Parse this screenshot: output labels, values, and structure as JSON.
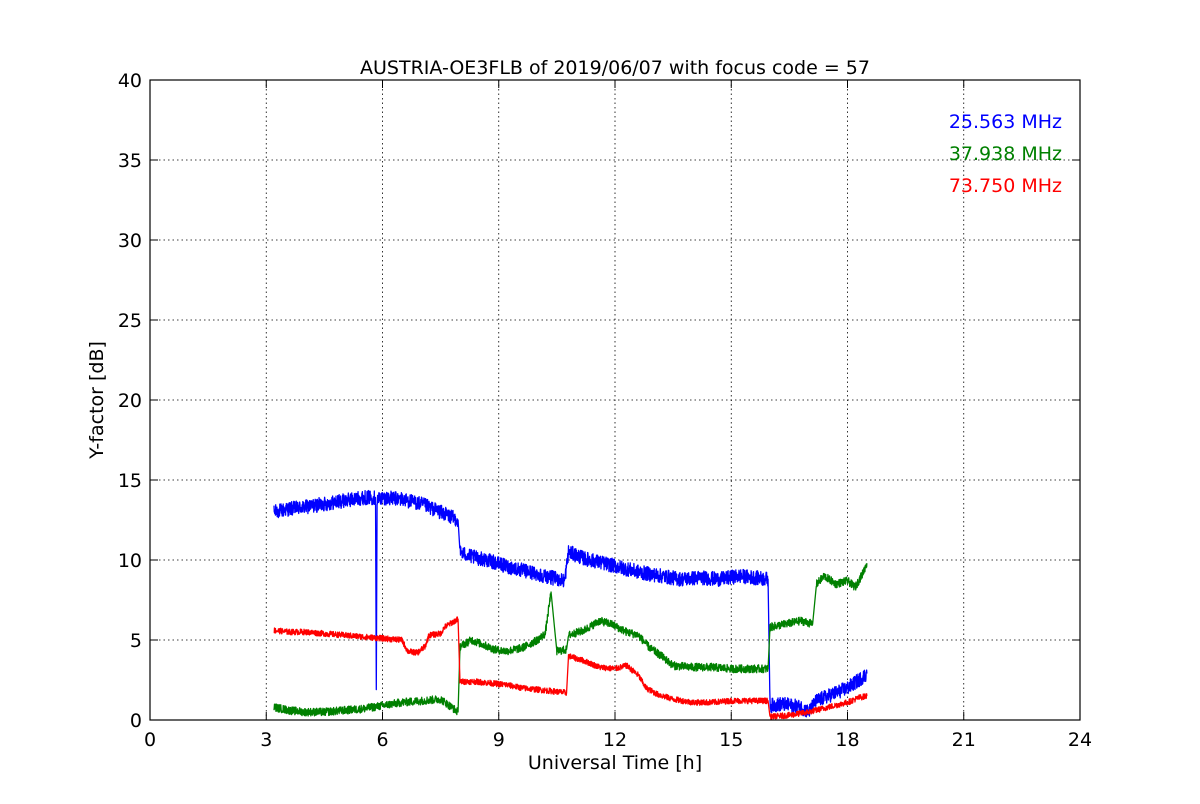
{
  "chart_data": {
    "type": "line",
    "title": "AUSTRIA-OE3FLB of 2019/06/07 with focus code = 57",
    "xlabel": "Universal Time [h]",
    "ylabel": "Y-factor [dB]",
    "xlim": [
      0,
      24
    ],
    "ylim": [
      0,
      40
    ],
    "xticks": [
      "0",
      "3",
      "6",
      "9",
      "12",
      "15",
      "18",
      "21",
      "24"
    ],
    "yticks": [
      "0",
      "5",
      "10",
      "15",
      "20",
      "25",
      "30",
      "35",
      "40"
    ],
    "grid": true,
    "legend_position": "top-right",
    "series": [
      {
        "name": "25.563 MHz",
        "color": "#0000ff",
        "noise": 0.45,
        "points": [
          [
            3.2,
            13.0
          ],
          [
            3.6,
            13.2
          ],
          [
            4.0,
            13.3
          ],
          [
            4.5,
            13.5
          ],
          [
            5.0,
            13.7
          ],
          [
            5.5,
            13.9
          ],
          [
            5.82,
            13.9
          ],
          [
            5.84,
            1.9
          ],
          [
            5.86,
            13.8
          ],
          [
            6.0,
            13.9
          ],
          [
            6.5,
            13.8
          ],
          [
            7.0,
            13.5
          ],
          [
            7.5,
            13.0
          ],
          [
            7.95,
            12.5
          ],
          [
            8.0,
            10.5
          ],
          [
            8.3,
            10.2
          ],
          [
            8.7,
            10.0
          ],
          [
            9.2,
            9.6
          ],
          [
            9.7,
            9.3
          ],
          [
            10.2,
            9.0
          ],
          [
            10.7,
            8.7
          ],
          [
            10.8,
            10.5
          ],
          [
            11.2,
            10.1
          ],
          [
            11.7,
            9.8
          ],
          [
            12.2,
            9.5
          ],
          [
            12.7,
            9.2
          ],
          [
            13.2,
            9.0
          ],
          [
            13.7,
            8.8
          ],
          [
            14.2,
            8.9
          ],
          [
            14.7,
            8.8
          ],
          [
            15.2,
            9.0
          ],
          [
            15.6,
            8.9
          ],
          [
            15.95,
            8.8
          ],
          [
            16.0,
            0.9
          ],
          [
            16.3,
            1.0
          ],
          [
            16.8,
            0.8
          ],
          [
            17.0,
            0.5
          ],
          [
            17.2,
            1.2
          ],
          [
            17.6,
            1.6
          ],
          [
            18.0,
            2.0
          ],
          [
            18.3,
            2.5
          ],
          [
            18.5,
            2.9
          ]
        ]
      },
      {
        "name": "37.938 MHz",
        "color": "#008000",
        "noise": 0.25,
        "points": [
          [
            3.2,
            0.8
          ],
          [
            3.6,
            0.6
          ],
          [
            4.0,
            0.5
          ],
          [
            4.5,
            0.5
          ],
          [
            5.0,
            0.6
          ],
          [
            5.5,
            0.7
          ],
          [
            6.0,
            0.9
          ],
          [
            6.5,
            1.1
          ],
          [
            7.0,
            1.2
          ],
          [
            7.5,
            1.3
          ],
          [
            7.95,
            0.5
          ],
          [
            8.0,
            4.6
          ],
          [
            8.3,
            5.0
          ],
          [
            8.6,
            4.7
          ],
          [
            8.9,
            4.4
          ],
          [
            9.2,
            4.3
          ],
          [
            9.6,
            4.5
          ],
          [
            10.0,
            5.0
          ],
          [
            10.2,
            5.4
          ],
          [
            10.35,
            8.0
          ],
          [
            10.45,
            5.5
          ],
          [
            10.5,
            4.3
          ],
          [
            10.75,
            4.4
          ],
          [
            10.8,
            5.3
          ],
          [
            11.2,
            5.6
          ],
          [
            11.6,
            6.2
          ],
          [
            11.9,
            6.0
          ],
          [
            12.3,
            5.5
          ],
          [
            12.6,
            5.3
          ],
          [
            12.9,
            4.5
          ],
          [
            13.2,
            4.0
          ],
          [
            13.5,
            3.4
          ],
          [
            14.0,
            3.3
          ],
          [
            14.5,
            3.3
          ],
          [
            15.0,
            3.2
          ],
          [
            15.5,
            3.2
          ],
          [
            15.95,
            3.2
          ],
          [
            16.0,
            5.8
          ],
          [
            16.4,
            6.0
          ],
          [
            16.8,
            6.2
          ],
          [
            17.1,
            6.0
          ],
          [
            17.2,
            8.5
          ],
          [
            17.4,
            9.0
          ],
          [
            17.7,
            8.5
          ],
          [
            18.0,
            8.7
          ],
          [
            18.2,
            8.3
          ],
          [
            18.4,
            9.2
          ],
          [
            18.5,
            9.8
          ]
        ]
      },
      {
        "name": "73.750 MHz",
        "color": "#ff0000",
        "noise": 0.18,
        "points": [
          [
            3.2,
            5.6
          ],
          [
            3.6,
            5.5
          ],
          [
            4.0,
            5.5
          ],
          [
            4.5,
            5.4
          ],
          [
            5.0,
            5.3
          ],
          [
            5.5,
            5.2
          ],
          [
            6.0,
            5.1
          ],
          [
            6.5,
            5.0
          ],
          [
            6.65,
            4.3
          ],
          [
            6.9,
            4.2
          ],
          [
            7.1,
            4.6
          ],
          [
            7.2,
            5.3
          ],
          [
            7.5,
            5.4
          ],
          [
            7.6,
            5.8
          ],
          [
            7.8,
            6.1
          ],
          [
            7.95,
            6.3
          ],
          [
            8.0,
            2.4
          ],
          [
            8.4,
            2.4
          ],
          [
            8.8,
            2.3
          ],
          [
            9.2,
            2.2
          ],
          [
            9.6,
            2.0
          ],
          [
            10.0,
            1.9
          ],
          [
            10.4,
            1.8
          ],
          [
            10.75,
            1.7
          ],
          [
            10.8,
            4.0
          ],
          [
            11.2,
            3.7
          ],
          [
            11.6,
            3.3
          ],
          [
            12.0,
            3.2
          ],
          [
            12.3,
            3.4
          ],
          [
            12.6,
            2.8
          ],
          [
            12.8,
            2.0
          ],
          [
            13.1,
            1.6
          ],
          [
            13.5,
            1.3
          ],
          [
            14.0,
            1.1
          ],
          [
            14.5,
            1.1
          ],
          [
            15.0,
            1.2
          ],
          [
            15.5,
            1.2
          ],
          [
            15.95,
            1.2
          ],
          [
            16.0,
            0.2
          ],
          [
            16.5,
            0.3
          ],
          [
            17.0,
            0.5
          ],
          [
            17.5,
            0.8
          ],
          [
            18.0,
            1.1
          ],
          [
            18.3,
            1.4
          ],
          [
            18.5,
            1.5
          ]
        ]
      }
    ]
  }
}
